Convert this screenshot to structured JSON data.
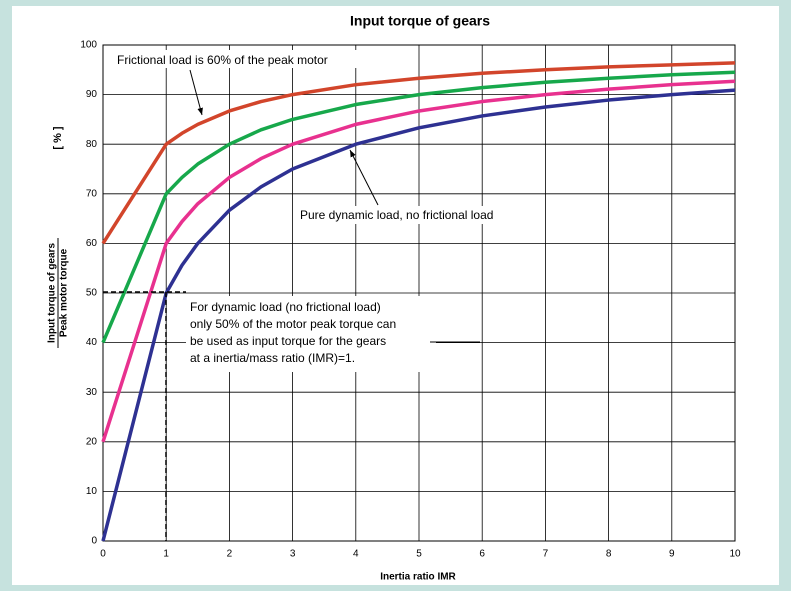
{
  "chart_data": {
    "type": "line",
    "title": "Input torque of gears",
    "xlabel": "Inertia ratio IMR",
    "ylabel": {
      "unit": "[ % ]",
      "numerator": "Input torque of gears",
      "denominator": "Peak motor torque"
    },
    "x": [
      0,
      1,
      1.25,
      1.5,
      2,
      2.5,
      3,
      4,
      5,
      6,
      7,
      8,
      9,
      10
    ],
    "series": [
      {
        "color": "#d2452b",
        "values": [
          60,
          80,
          82.2,
          84,
          86.7,
          88.6,
          90,
          92,
          93.3,
          94.3,
          95,
          95.6,
          96,
          96.4
        ]
      },
      {
        "color": "#17a84b",
        "values": [
          40,
          70,
          73.3,
          76,
          80,
          82.9,
          85,
          88,
          90,
          91.4,
          92.5,
          93.3,
          94,
          94.5
        ]
      },
      {
        "color": "#e8318f",
        "values": [
          20,
          60,
          64.4,
          68,
          73.3,
          77.1,
          80,
          84,
          86.7,
          88.6,
          90,
          91.1,
          92,
          92.7
        ]
      },
      {
        "color": "#2e3192",
        "values": [
          0,
          50,
          55.6,
          60,
          66.7,
          71.4,
          75,
          80,
          83.3,
          85.7,
          87.5,
          88.9,
          90,
          90.9
        ]
      }
    ],
    "xlim": [
      0,
      10
    ],
    "xticks": [
      0,
      1,
      2,
      3,
      4,
      5,
      6,
      7,
      8,
      9,
      10
    ],
    "ylim": [
      0,
      100
    ],
    "yticks": [
      0,
      10,
      20,
      30,
      40,
      50,
      60,
      70,
      80,
      90,
      100
    ],
    "grid": true,
    "annotations": [
      {
        "text": "Frictional load is 60% of the peak motor"
      },
      {
        "text": "Pure dynamic load, no frictional load"
      },
      {
        "lines": [
          "For dynamic load (no frictional load)",
          "only 50% of the motor peak torque can",
          "be used as input torque for the gears",
          "at a inertia/mass ratio (IMR)=1."
        ]
      }
    ]
  }
}
